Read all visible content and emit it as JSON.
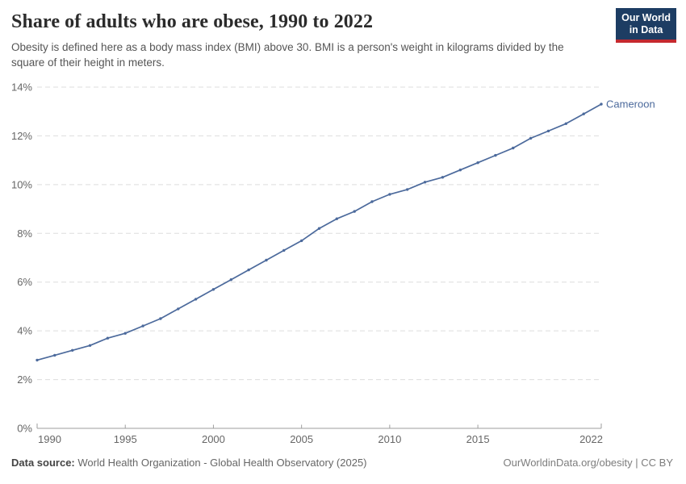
{
  "header": {
    "title": "Share of adults who are obese, 1990 to 2022",
    "subtitle": "Obesity is defined here as a body mass index (BMI) above 30. BMI is a person's weight in kilograms divided by the square of their height in meters.",
    "logo": {
      "line1": "Our World",
      "line2": "in Data"
    }
  },
  "chart_data": {
    "type": "line",
    "title": "Share of adults who are obese, 1990 to 2022",
    "xlabel": "",
    "ylabel": "",
    "xlim": [
      1990,
      2022
    ],
    "ylim": [
      0,
      14
    ],
    "grid": "horizontal-dashed",
    "legend_position": "end-of-line-label",
    "x_ticks": [
      1990,
      1995,
      2000,
      2005,
      2010,
      2015,
      2022
    ],
    "x_tick_labels": [
      "1990",
      "1995",
      "2000",
      "2005",
      "2010",
      "2015",
      "2022"
    ],
    "y_ticks": [
      0,
      2,
      4,
      6,
      8,
      10,
      12,
      14
    ],
    "y_tick_labels": [
      "0%",
      "2%",
      "4%",
      "6%",
      "8%",
      "10%",
      "12%",
      "14%"
    ],
    "x": [
      1990,
      1991,
      1992,
      1993,
      1994,
      1995,
      1996,
      1997,
      1998,
      1999,
      2000,
      2001,
      2002,
      2003,
      2004,
      2005,
      2006,
      2007,
      2008,
      2009,
      2010,
      2011,
      2012,
      2013,
      2014,
      2015,
      2016,
      2017,
      2018,
      2019,
      2020,
      2021,
      2022
    ],
    "series": [
      {
        "name": "Cameroon",
        "color": "#4c6a9c",
        "values": [
          2.8,
          3.0,
          3.2,
          3.4,
          3.7,
          3.9,
          4.2,
          4.5,
          4.9,
          5.3,
          5.7,
          6.1,
          6.5,
          6.9,
          7.3,
          7.7,
          8.2,
          8.6,
          8.9,
          9.3,
          9.6,
          9.8,
          10.1,
          10.3,
          10.6,
          10.9,
          11.2,
          11.5,
          11.9,
          12.2,
          12.5,
          12.9,
          13.3
        ]
      }
    ]
  },
  "footer": {
    "source_label": "Data source:",
    "source_text": " World Health Organization - Global Health Observatory (2025)",
    "credit": "OurWorldinData.org/obesity | CC BY"
  },
  "colors": {
    "accent": "#4c6a9c",
    "grid": "#dddddd",
    "axis": "#9e9e9e",
    "tick_text": "#666666",
    "logo_bg": "#1d3d63",
    "logo_red": "#c5292f"
  }
}
